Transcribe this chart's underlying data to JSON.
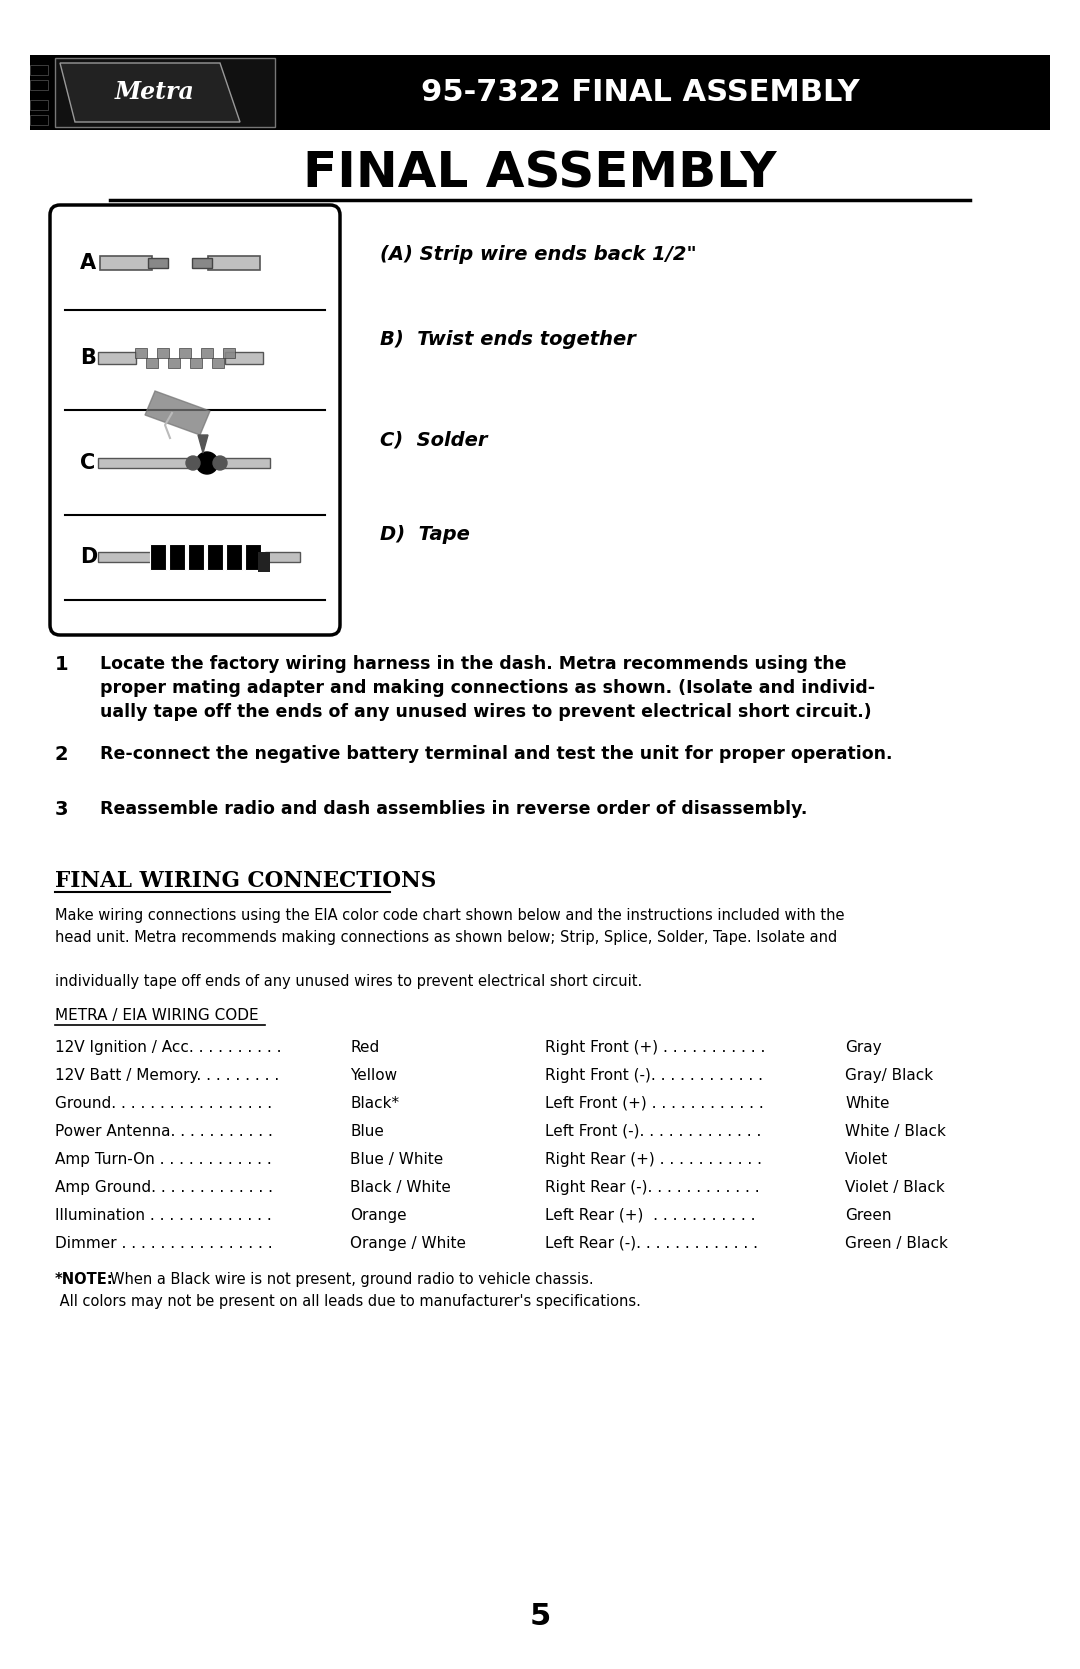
{
  "page_title": "FINAL ASSEMBLY",
  "header_model": "95-7322 FINAL ASSEMBLY",
  "bg_color": "#ffffff",
  "header_bg": "#000000",
  "header_text_color": "#ffffff",
  "title_color": "#000000",
  "diagram_labels": [
    "A",
    "B",
    "C",
    "D"
  ],
  "diagram_steps": [
    "(A) Strip wire ends back 1/2\"",
    "B)  Twist ends together",
    "C)  Solder",
    "D)  Tape"
  ],
  "section_title": "FINAL WIRING CONNECTIONS",
  "section_subtitle_underline": "METRA / EIA WIRING CODE",
  "wiring_left": [
    [
      "12V Ignition / Acc",
      "Red"
    ],
    [
      "12V Batt / Memory",
      "Yellow"
    ],
    [
      "Ground",
      "Black*"
    ],
    [
      "Power Antenna",
      "Blue"
    ],
    [
      "Amp Turn-On",
      "Blue / White"
    ],
    [
      "Amp Ground",
      "Black / White"
    ],
    [
      "Illumination",
      "Orange"
    ],
    [
      "Dimmer",
      "Orange / White"
    ]
  ],
  "wiring_right": [
    [
      "Right Front (+)",
      "Gray"
    ],
    [
      "Right Front (-)",
      "Gray/ Black"
    ],
    [
      "Left Front (+)",
      "White"
    ],
    [
      "Left Front (-)",
      "White / Black"
    ],
    [
      "Right Rear (+)",
      "Violet"
    ],
    [
      "Right Rear (-)",
      "Violet / Black"
    ],
    [
      "Left Rear (+)",
      "Green"
    ],
    [
      "Left Rear (-)",
      "Green / Black"
    ]
  ],
  "page_number": "5",
  "step1_lines": [
    "Locate the factory wiring harness in the dash. Metra recommends using the",
    "proper mating adapter and making connections as shown. (Isolate and individ-",
    "ually tape off the ends of any unused wires to prevent electrical short circuit.)"
  ],
  "step2_text": "Re-connect the negative battery terminal and test the unit for proper operation.",
  "step3_text": "Reassemble radio and dash assemblies in reverse order of disassembly.",
  "para_lines": [
    "Make wiring connections using the EIA color code chart shown below and the instructions included with the",
    "head unit. Metra recommends making connections as shown below; Strip, Splice, Solder, Tape. Isolate and",
    "",
    "individually tape off ends of any unused wires to prevent electrical short circuit."
  ],
  "note_bold": "*NOTE:",
  "note_line1": "When a Black wire is not present, ground radio to vehicle chassis.",
  "note_line2": " All colors may not be present on all leads due to manufacturer's specifications.",
  "wiring_left_dots": [
    "12V Ignition / Acc. . . . . . . . . .",
    "12V Batt / Memory. . . . . . . . .",
    "Ground. . . . . . . . . . . . . . . . .",
    "Power Antenna. . . . . . . . . . .",
    "Amp Turn-On . . . . . . . . . . . .",
    "Amp Ground. . . . . . . . . . . . .",
    "Illumination . . . . . . . . . . . . .",
    "Dimmer . . . . . . . . . . . . . . . ."
  ],
  "wiring_right_dots": [
    "Right Front (+) . . . . . . . . . . .",
    "Right Front (-). . . . . . . . . . . .",
    "Left Front (+) . . . . . . . . . . . .",
    "Left Front (-). . . . . . . . . . . . .",
    "Right Rear (+) . . . . . . . . . . .",
    "Right Rear (-). . . . . . . . . . . .",
    "Left Rear (+)  . . . . . . . . . . .",
    "Left Rear (-). . . . . . . . . . . . ."
  ]
}
